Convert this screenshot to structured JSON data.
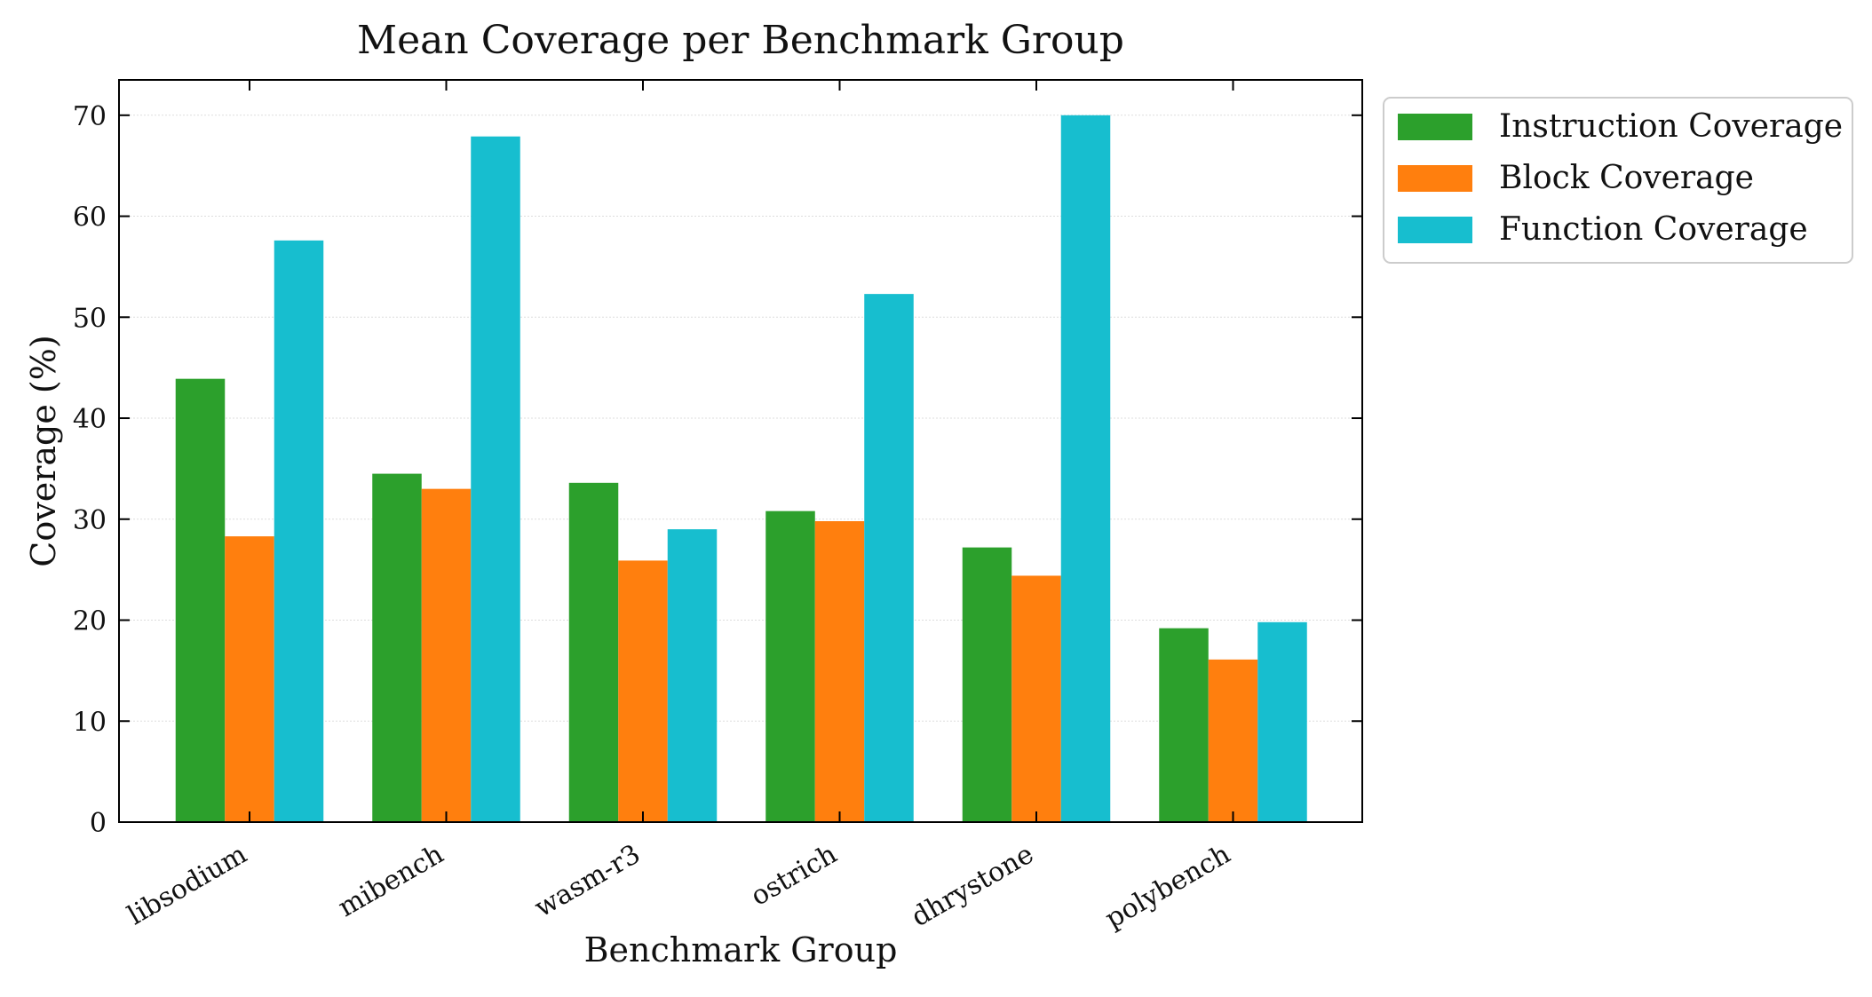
{
  "chart_data": {
    "type": "bar",
    "title": "Mean Coverage per Benchmark Group",
    "xlabel": "Benchmark Group",
    "ylabel": "Coverage (%)",
    "categories": [
      "libsodium",
      "mibench",
      "wasm-r3",
      "ostrich",
      "dhrystone",
      "polybench"
    ],
    "series": [
      {
        "name": "Instruction Coverage",
        "color": "#2ca02c",
        "values": [
          43.9,
          34.5,
          33.6,
          30.8,
          27.2,
          19.2
        ]
      },
      {
        "name": "Block Coverage",
        "color": "#ff7f0e",
        "values": [
          28.3,
          33.0,
          25.9,
          29.8,
          24.4,
          16.1
        ]
      },
      {
        "name": "Function Coverage",
        "color": "#17becf",
        "values": [
          57.6,
          67.9,
          29.0,
          52.3,
          70.0,
          19.8
        ]
      }
    ],
    "yticks": [
      0,
      10,
      20,
      30,
      40,
      50,
      60,
      70
    ],
    "ylim": [
      0,
      73.5
    ],
    "grid": true,
    "legend_position": "outside-top-right"
  }
}
